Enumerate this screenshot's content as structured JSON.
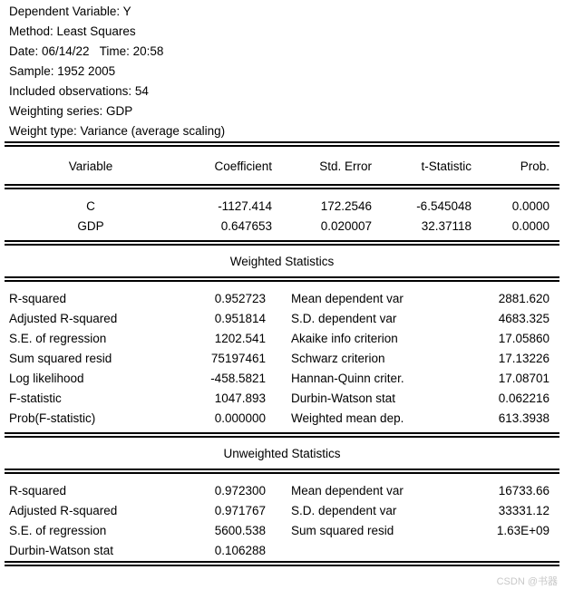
{
  "header": {
    "lines": [
      "Dependent Variable: Y",
      "Method: Least Squares",
      "Date: 06/14/22   Time: 20:58",
      "Sample: 1952 2005",
      "Included observations: 54",
      "Weighting series: GDP",
      "Weight type: Variance (average scaling)"
    ]
  },
  "coefficient_table": {
    "columns": {
      "variable": "Variable",
      "coefficient": "Coefficient",
      "std_error": "Std. Error",
      "t_statistic": "t-Statistic",
      "prob": "Prob."
    },
    "rows": [
      {
        "variable": "C",
        "coefficient": "-1127.414",
        "std_error": "172.2546",
        "t_statistic": "-6.545048",
        "prob": "0.0000"
      },
      {
        "variable": "GDP",
        "coefficient": "0.647653",
        "std_error": "0.020007",
        "t_statistic": "32.37118",
        "prob": "0.0000"
      }
    ]
  },
  "weighted_statistics": {
    "title": "Weighted Statistics",
    "left": [
      {
        "label": "R-squared",
        "value": "0.952723"
      },
      {
        "label": "Adjusted R-squared",
        "value": "0.951814"
      },
      {
        "label": "S.E. of regression",
        "value": "1202.541"
      },
      {
        "label": "Sum squared resid",
        "value": "75197461"
      },
      {
        "label": "Log likelihood",
        "value": "-458.5821"
      },
      {
        "label": "F-statistic",
        "value": "1047.893"
      },
      {
        "label": "Prob(F-statistic)",
        "value": "0.000000"
      }
    ],
    "right": [
      {
        "label": "Mean dependent var",
        "value": "2881.620"
      },
      {
        "label": "S.D. dependent var",
        "value": "4683.325"
      },
      {
        "label": "Akaike info criterion",
        "value": "17.05860"
      },
      {
        "label": "Schwarz criterion",
        "value": "17.13226"
      },
      {
        "label": "Hannan-Quinn criter.",
        "value": "17.08701"
      },
      {
        "label": "Durbin-Watson stat",
        "value": "0.062216"
      },
      {
        "label": "Weighted mean dep.",
        "value": "613.3938"
      }
    ]
  },
  "unweighted_statistics": {
    "title": "Unweighted Statistics",
    "left": [
      {
        "label": "R-squared",
        "value": "0.972300"
      },
      {
        "label": "Adjusted R-squared",
        "value": "0.971767"
      },
      {
        "label": "S.E. of regression",
        "value": "5600.538"
      },
      {
        "label": "Durbin-Watson stat",
        "value": "0.106288"
      }
    ],
    "right": [
      {
        "label": "Mean dependent var",
        "value": "16733.66"
      },
      {
        "label": "S.D. dependent var",
        "value": "33331.12"
      },
      {
        "label": "Sum squared resid",
        "value": "1.63E+09"
      }
    ]
  },
  "watermark": "CSDN @书器",
  "colors": {
    "text": "#000000",
    "background": "#ffffff",
    "watermark": "#c8c8c8"
  }
}
